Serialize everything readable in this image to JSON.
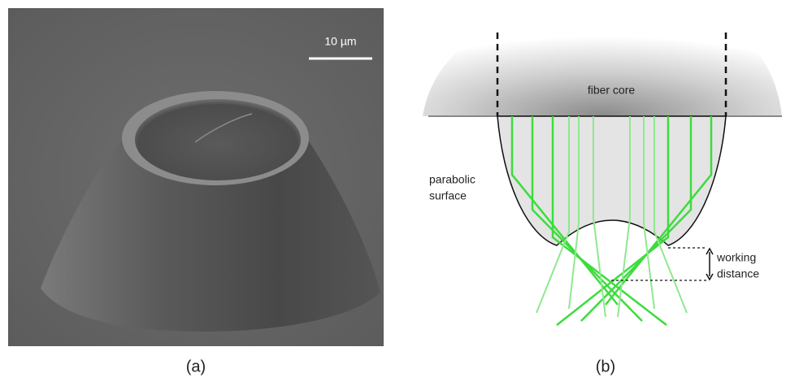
{
  "panels": [
    {
      "label": "(a)",
      "scale_bar": "10 µm"
    },
    {
      "label": "(b)",
      "fiber_core": "fiber core",
      "parabolic_surface": [
        "parabolic",
        "surface"
      ],
      "working_distance": [
        "working",
        "distance"
      ]
    }
  ]
}
